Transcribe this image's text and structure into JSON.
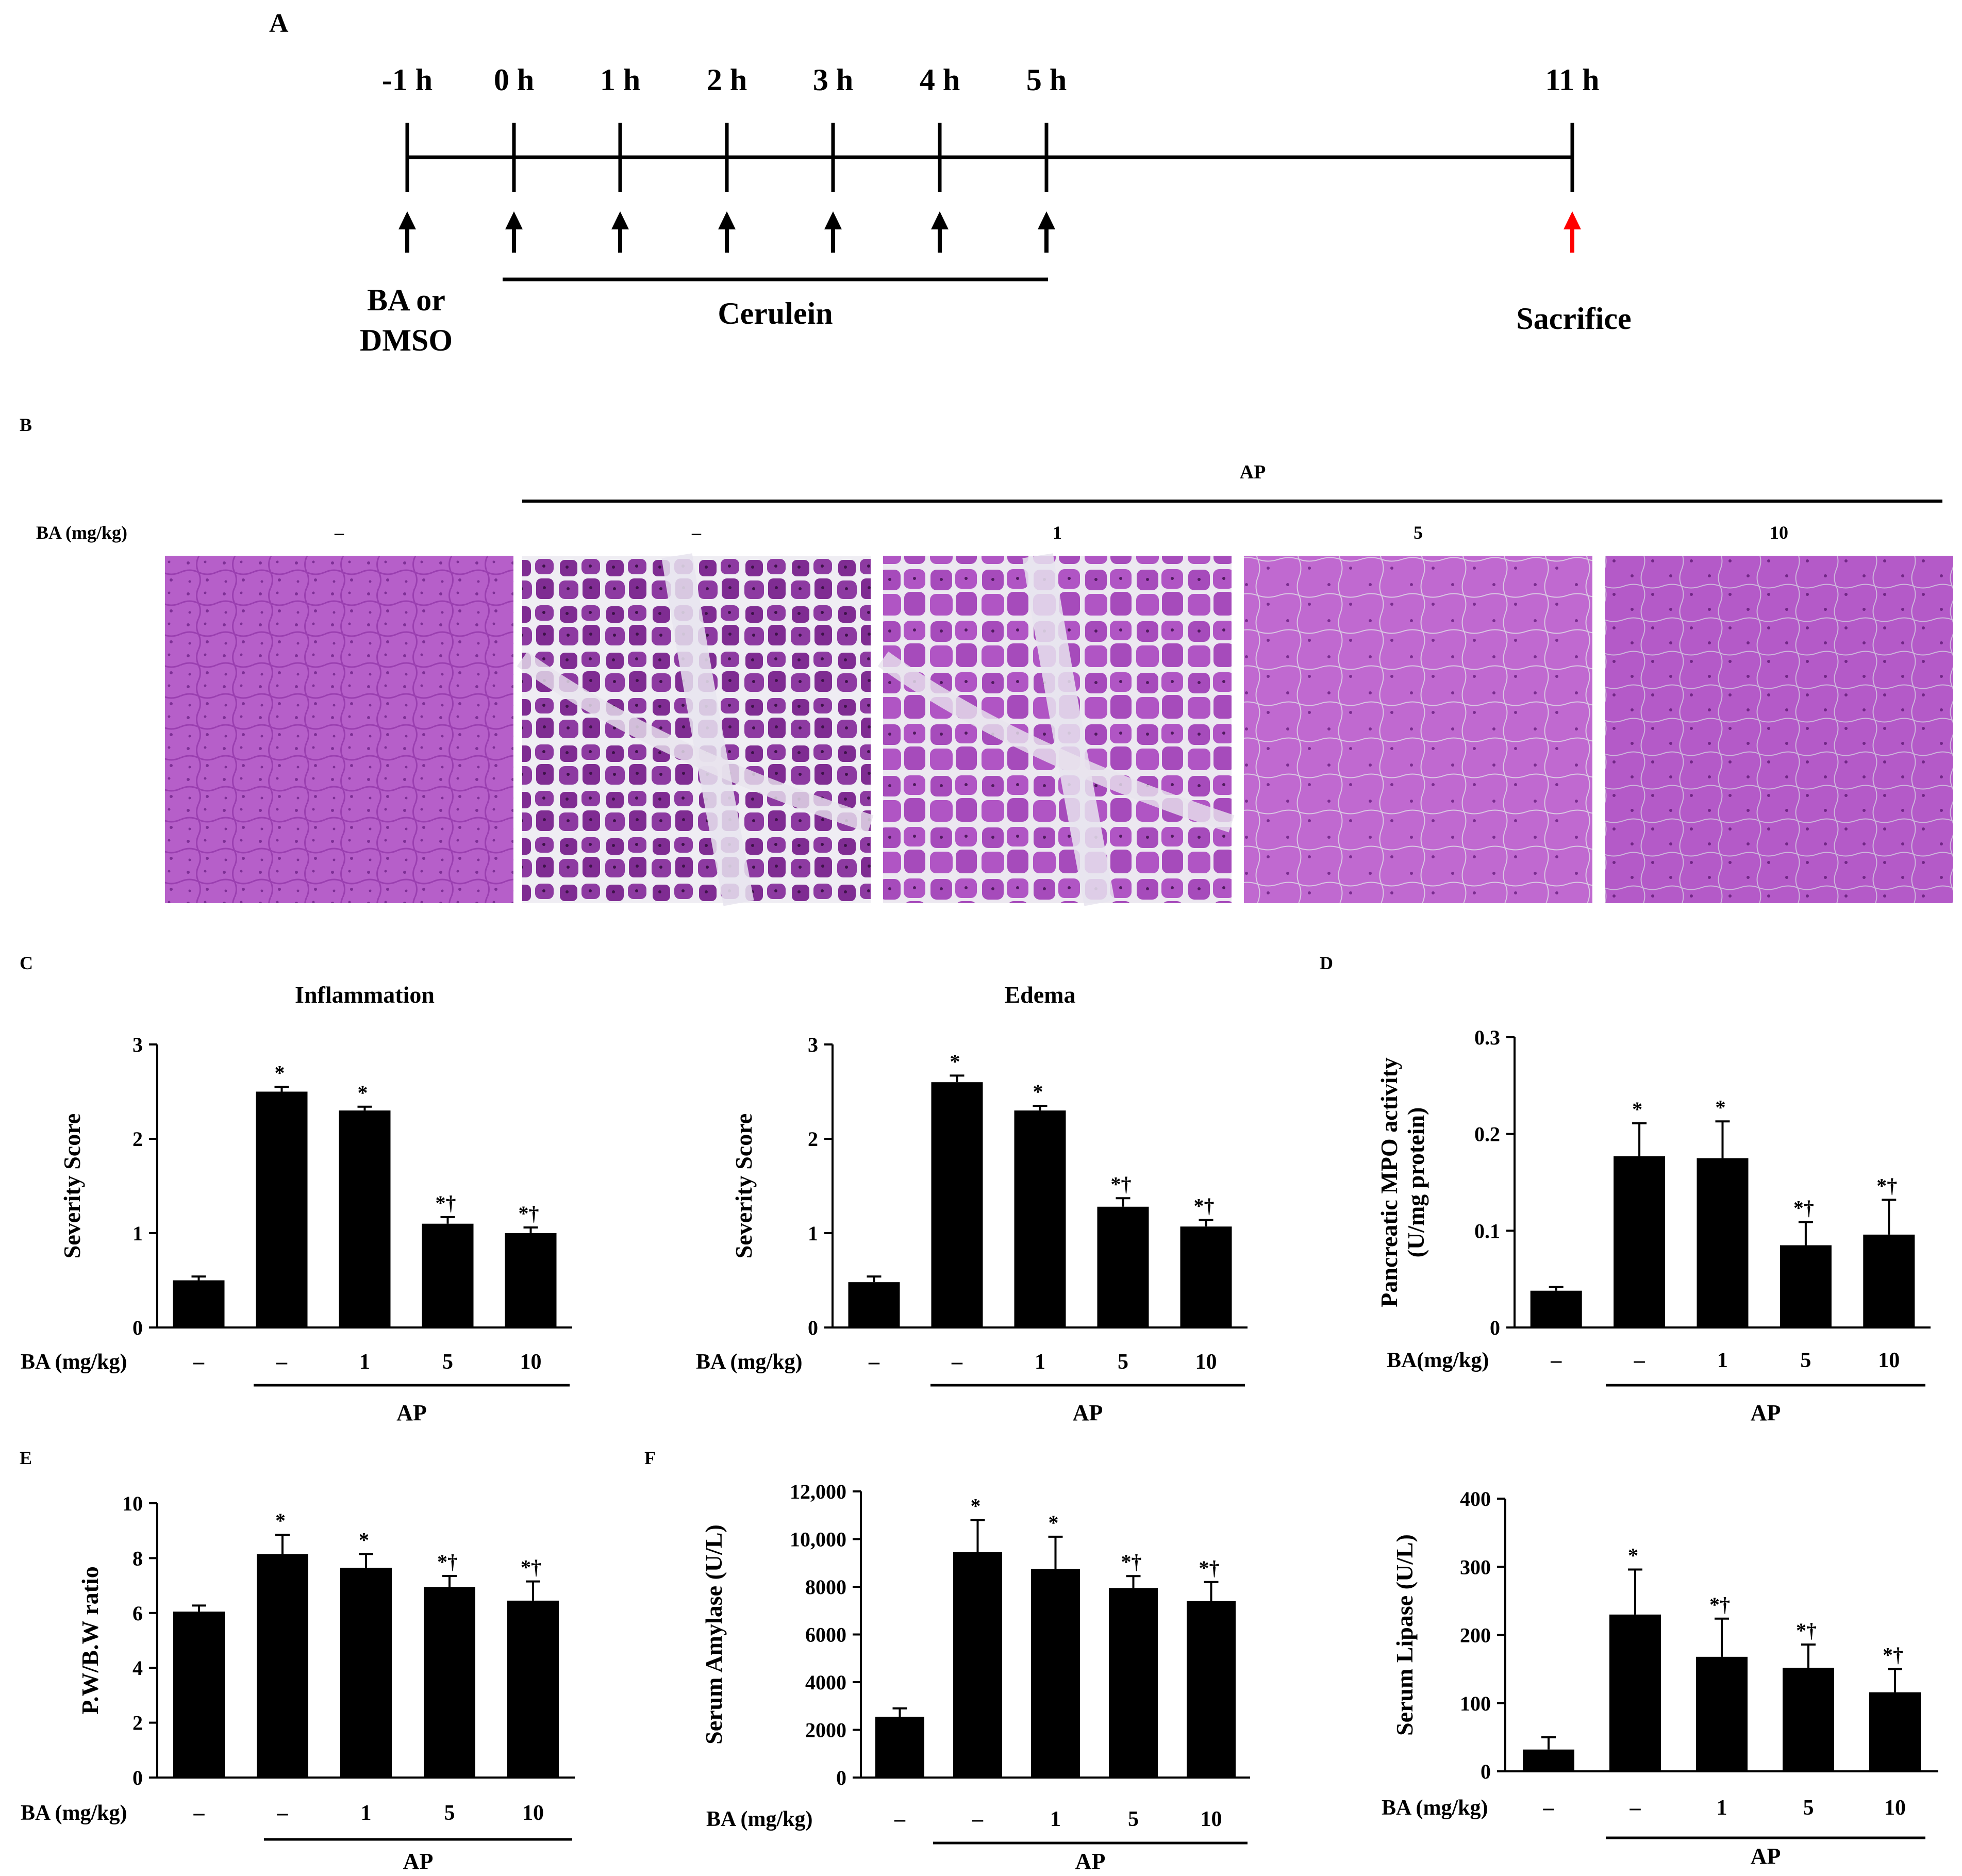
{
  "panel_labels": {
    "a": "A",
    "b": "B",
    "c": "C",
    "d": "D",
    "e": "E",
    "f": "F"
  },
  "colors": {
    "bar": "#000000",
    "axis": "#000000",
    "sacrifice_arrow": "#ff0000",
    "histology_normal": "#b158c4",
    "histology_stroma": "#e8e4ee",
    "histology_acini": "#7a2a8c"
  },
  "timeline": {
    "time_points": [
      "-1 h",
      "0 h",
      "1 h",
      "2 h",
      "3 h",
      "4 h",
      "5 h",
      "11 h"
    ],
    "label_ba": [
      "BA or",
      "DMSO"
    ],
    "label_cerulein": "Cerulein",
    "label_sacrifice": "Sacrifice"
  },
  "histology": {
    "group_label": "AP",
    "row_label": "BA (mg/kg)",
    "doses": [
      "–",
      "–",
      "1",
      "5",
      "10"
    ],
    "images": [
      "normal pancreas H&E",
      "AP pancreas H&E",
      "AP + BA 1 H&E",
      "AP + BA 5 H&E",
      "AP + BA 10 H&E"
    ]
  },
  "chart_data": [
    {
      "id": "inflammation",
      "type": "bar",
      "title": "Inflammation",
      "xlabel": "",
      "ylabel": "Severity Score",
      "x_row_label": "BA (mg/kg)",
      "categories": [
        "–",
        "–",
        "1",
        "5",
        "10"
      ],
      "group_label": "AP",
      "values": [
        0.5,
        2.5,
        2.3,
        1.1,
        1.0
      ],
      "errors": [
        0.04,
        0.05,
        0.04,
        0.07,
        0.06
      ],
      "significance": [
        "",
        "*",
        "*",
        "*†",
        "*†"
      ],
      "ylim": [
        0,
        3
      ],
      "yticks": [
        "0",
        "1",
        "2",
        "3"
      ],
      "ytick_values": [
        0,
        1,
        2,
        3
      ]
    },
    {
      "id": "edema",
      "type": "bar",
      "title": "Edema",
      "xlabel": "",
      "ylabel": "Severity Score",
      "x_row_label": "BA (mg/kg)",
      "categories": [
        "–",
        "–",
        "1",
        "5",
        "10"
      ],
      "group_label": "AP",
      "values": [
        0.48,
        2.6,
        2.3,
        1.28,
        1.07
      ],
      "errors": [
        0.06,
        0.07,
        0.05,
        0.09,
        0.07
      ],
      "significance": [
        "",
        "*",
        "*",
        "*†",
        "*†"
      ],
      "ylim": [
        0,
        3
      ],
      "yticks": [
        "0",
        "1",
        "2",
        "3"
      ],
      "ytick_values": [
        0,
        1,
        2,
        3
      ]
    },
    {
      "id": "mpo",
      "type": "bar",
      "title": "",
      "xlabel": "",
      "ylabel": [
        "Pancreatic MPO activity",
        "(U/mg protein)"
      ],
      "x_row_label": "BA(mg/kg)",
      "categories": [
        "–",
        "–",
        "1",
        "5",
        "10"
      ],
      "group_label": "AP",
      "values": [
        0.038,
        0.177,
        0.175,
        0.085,
        0.096
      ],
      "errors": [
        0.004,
        0.034,
        0.038,
        0.024,
        0.036
      ],
      "significance": [
        "",
        "*",
        "*",
        "*†",
        "*†"
      ],
      "ylim": [
        0,
        0.3
      ],
      "yticks": [
        "0",
        "0.1",
        "0.2",
        "0.3"
      ],
      "ytick_values": [
        0,
        0.1,
        0.2,
        0.3
      ]
    },
    {
      "id": "pwbw",
      "type": "bar",
      "title": "",
      "xlabel": "",
      "ylabel": "P.W/B.W ratio",
      "x_row_label": "BA (mg/kg)",
      "categories": [
        "–",
        "–",
        "1",
        "5",
        "10"
      ],
      "group_label": "AP",
      "values": [
        6.05,
        8.15,
        7.65,
        6.95,
        6.45
      ],
      "errors": [
        0.22,
        0.7,
        0.5,
        0.4,
        0.7
      ],
      "significance": [
        "",
        "*",
        "*",
        "*†",
        "*†"
      ],
      "ylim": [
        0,
        10
      ],
      "yticks": [
        "0",
        "2",
        "4",
        "6",
        "8",
        "10"
      ],
      "ytick_values": [
        0,
        2,
        4,
        6,
        8,
        10
      ]
    },
    {
      "id": "amylase",
      "type": "bar",
      "title": "",
      "xlabel": "",
      "ylabel": "Serum Amylase (U/L)",
      "x_row_label": "BA (mg/kg)",
      "categories": [
        "–",
        "–",
        "1",
        "5",
        "10"
      ],
      "group_label": "AP",
      "values": [
        2550,
        9450,
        8750,
        7950,
        7400
      ],
      "errors": [
        350,
        1350,
        1350,
        500,
        800
      ],
      "significance": [
        "",
        "*",
        "*",
        "*†",
        "*†"
      ],
      "ylim": [
        0,
        12000
      ],
      "yticks": [
        "0",
        "2000",
        "4000",
        "6000",
        "8000",
        "10,000",
        "12,000"
      ],
      "ytick_values": [
        0,
        2000,
        4000,
        6000,
        8000,
        10000,
        12000
      ]
    },
    {
      "id": "lipase",
      "type": "bar",
      "title": "",
      "xlabel": "",
      "ylabel": "Serum Lipase (U/L)",
      "x_row_label": "BA (mg/kg)",
      "categories": [
        "–",
        "–",
        "1",
        "5",
        "10"
      ],
      "group_label": "AP",
      "values": [
        32,
        230,
        168,
        152,
        116
      ],
      "errors": [
        18,
        66,
        56,
        34,
        34
      ],
      "significance": [
        "",
        "*",
        "*†",
        "*†",
        "*†"
      ],
      "ylim": [
        0,
        400
      ],
      "yticks": [
        "0",
        "100",
        "200",
        "300",
        "400"
      ],
      "ytick_values": [
        0,
        100,
        200,
        300,
        400
      ]
    }
  ]
}
